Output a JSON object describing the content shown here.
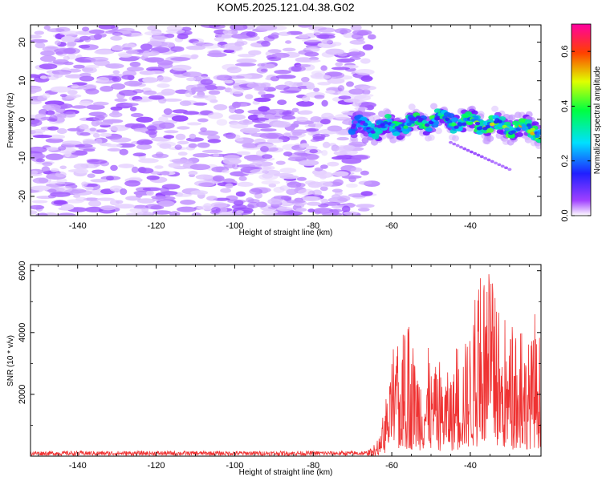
{
  "title": "KOM5.2025.121.04.38.G02",
  "chart_data": [
    {
      "type": "heatmap",
      "xlabel": "Height of straight line (km)",
      "ylabel": "Frequency (Hz)",
      "xlim": [
        -152,
        -22
      ],
      "ylim": [
        -25,
        24.5
      ],
      "xticks": [
        -140,
        -120,
        -100,
        -80,
        -60,
        -40
      ],
      "yticks": [
        -20,
        -10,
        0,
        10,
        20
      ],
      "colorbar": {
        "label": "Normalized spectral amplitude",
        "range": [
          0,
          0.7
        ],
        "ticks": [
          "0.0",
          "0.2",
          "0.4",
          "0.6"
        ],
        "tick_values": [
          0,
          0.2,
          0.4,
          0.6
        ],
        "colors": [
          "#ffffff",
          "#8000ff",
          "#0000ff",
          "#00ffff",
          "#00ff00",
          "#ffff00",
          "#ff0000",
          "#ff00ff"
        ]
      },
      "noise_region": {
        "x": [
          -152,
          -65
        ],
        "y": [
          -25,
          24.5
        ],
        "amplitude": [
          0.02,
          0.12
        ]
      },
      "signal_band": {
        "x": [
          -70,
          -60,
          -50,
          -40,
          -30,
          -22
        ],
        "center_freq": [
          -2,
          -2,
          0,
          -1,
          -2,
          -3
        ],
        "peak_amplitude": [
          0.3,
          0.45,
          0.5,
          0.55,
          0.6,
          0.7
        ]
      },
      "secondary_band": {
        "x": [
          -45,
          -30
        ],
        "freq": [
          -6,
          -13
        ]
      }
    },
    {
      "type": "line",
      "xlabel": "Height of straight line (km)",
      "ylabel": "SNR (10 * v/v)",
      "xlim": [
        -152,
        -22
      ],
      "ylim": [
        0,
        6200
      ],
      "xticks": [
        -140,
        -120,
        -100,
        -80,
        -60,
        -40
      ],
      "yticks": [
        2000,
        4000,
        6000
      ],
      "color": "#ef3232",
      "noise_level": [
        0,
        180
      ],
      "envelope_x": [
        -152,
        -66,
        -63,
        -60,
        -56,
        -52,
        -48,
        -44,
        -40,
        -37,
        -35,
        -32,
        -28,
        -24,
        -22
      ],
      "envelope_max": [
        180,
        200,
        600,
        3400,
        4300,
        3600,
        3300,
        3500,
        5200,
        6100,
        6000,
        4500,
        4100,
        4900,
        5000
      ]
    }
  ]
}
